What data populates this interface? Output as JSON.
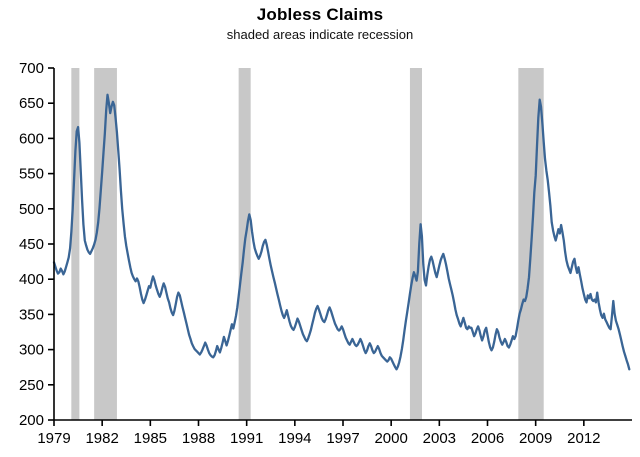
{
  "header": {
    "title": "Jobless Claims",
    "subtitle": "shaded areas indicate recession"
  },
  "colors": {
    "line": "#3a6595",
    "recession": "#c8c8c8",
    "axis": "#000000",
    "background": "#ffffff"
  },
  "chart_data": {
    "type": "line",
    "title": "Jobless Claims",
    "subtitle": "shaded areas indicate recession",
    "xlabel": "",
    "ylabel": "",
    "grid": false,
    "legend": "none",
    "x_range": [
      1979,
      2015
    ],
    "y_range": [
      200,
      700
    ],
    "y_tick_step": 50,
    "y_ticks": [
      200,
      250,
      300,
      350,
      400,
      450,
      500,
      550,
      600,
      650,
      700
    ],
    "x_ticks": [
      1979,
      1982,
      1985,
      1988,
      1991,
      1994,
      1997,
      2000,
      2003,
      2006,
      2009,
      2012
    ],
    "recessions": [
      [
        1980.08,
        1980.58
      ],
      [
        1981.5,
        1982.92
      ],
      [
        1990.5,
        1991.25
      ],
      [
        2001.17,
        2001.92
      ],
      [
        2007.92,
        2009.5
      ]
    ],
    "x_start_year": 1979,
    "points_per_year": 12,
    "values": [
      424,
      418,
      412,
      408,
      410,
      415,
      412,
      407,
      411,
      417,
      424,
      431,
      444,
      468,
      500,
      542,
      582,
      610,
      616,
      594,
      552,
      512,
      478,
      455,
      448,
      442,
      438,
      436,
      440,
      444,
      449,
      456,
      466,
      481,
      501,
      526,
      553,
      580,
      606,
      640,
      662,
      650,
      636,
      645,
      652,
      647,
      630,
      609,
      584,
      556,
      526,
      500,
      479,
      461,
      447,
      437,
      427,
      417,
      409,
      404,
      400,
      397,
      401,
      397,
      389,
      379,
      371,
      366,
      371,
      377,
      384,
      390,
      388,
      397,
      404,
      399,
      391,
      385,
      379,
      375,
      380,
      388,
      394,
      389,
      381,
      373,
      367,
      359,
      353,
      349,
      355,
      365,
      375,
      381,
      377,
      369,
      361,
      353,
      345,
      337,
      329,
      321,
      315,
      309,
      305,
      301,
      299,
      297,
      295,
      293,
      296,
      300,
      305,
      310,
      306,
      300,
      295,
      292,
      290,
      289,
      292,
      298,
      305,
      300,
      296,
      302,
      310,
      318,
      312,
      306,
      312,
      320,
      328,
      336,
      330,
      338,
      348,
      360,
      375,
      392,
      408,
      424,
      442,
      458,
      470,
      483,
      492,
      484,
      468,
      454,
      444,
      438,
      433,
      429,
      433,
      439,
      447,
      453,
      456,
      449,
      439,
      429,
      419,
      411,
      403,
      395,
      387,
      379,
      371,
      363,
      355,
      349,
      345,
      350,
      356,
      348,
      340,
      334,
      330,
      328,
      332,
      338,
      344,
      340,
      334,
      328,
      322,
      318,
      314,
      312,
      316,
      322,
      328,
      336,
      344,
      352,
      358,
      362,
      357,
      351,
      345,
      341,
      339,
      343,
      349,
      356,
      360,
      355,
      349,
      343,
      337,
      333,
      329,
      327,
      329,
      333,
      329,
      323,
      317,
      313,
      309,
      307,
      311,
      315,
      311,
      307,
      305,
      307,
      311,
      315,
      311,
      305,
      299,
      295,
      299,
      305,
      309,
      305,
      299,
      295,
      297,
      301,
      305,
      301,
      295,
      291,
      289,
      287,
      285,
      283,
      285,
      289,
      287,
      283,
      279,
      275,
      272,
      276,
      282,
      290,
      301,
      313,
      327,
      341,
      353,
      366,
      379,
      391,
      402,
      410,
      404,
      398,
      411,
      451,
      478,
      461,
      421,
      399,
      391,
      406,
      418,
      428,
      432,
      426,
      417,
      409,
      403,
      411,
      419,
      427,
      432,
      436,
      429,
      421,
      411,
      401,
      393,
      385,
      377,
      367,
      357,
      349,
      343,
      337,
      333,
      339,
      345,
      338,
      331,
      329,
      333,
      331,
      331,
      325,
      319,
      323,
      329,
      333,
      327,
      319,
      313,
      319,
      327,
      331,
      321,
      311,
      303,
      299,
      303,
      311,
      321,
      329,
      325,
      317,
      311,
      307,
      311,
      315,
      311,
      305,
      303,
      307,
      313,
      319,
      315,
      319,
      329,
      341,
      351,
      357,
      365,
      371,
      369,
      375,
      387,
      403,
      429,
      459,
      489,
      523,
      547,
      589,
      629,
      655,
      645,
      621,
      595,
      571,
      554,
      541,
      524,
      504,
      481,
      469,
      461,
      455,
      463,
      471,
      465,
      477,
      467,
      455,
      439,
      427,
      419,
      414,
      409,
      417,
      425,
      429,
      417,
      409,
      417,
      407,
      397,
      387,
      379,
      371,
      367,
      377,
      373,
      379,
      371,
      369,
      371,
      367,
      381,
      367,
      357,
      349,
      345,
      351,
      343,
      339,
      335,
      331,
      329,
      347,
      369,
      351,
      341,
      335,
      329,
      321,
      313,
      305,
      297,
      291,
      285,
      279,
      272
    ]
  }
}
